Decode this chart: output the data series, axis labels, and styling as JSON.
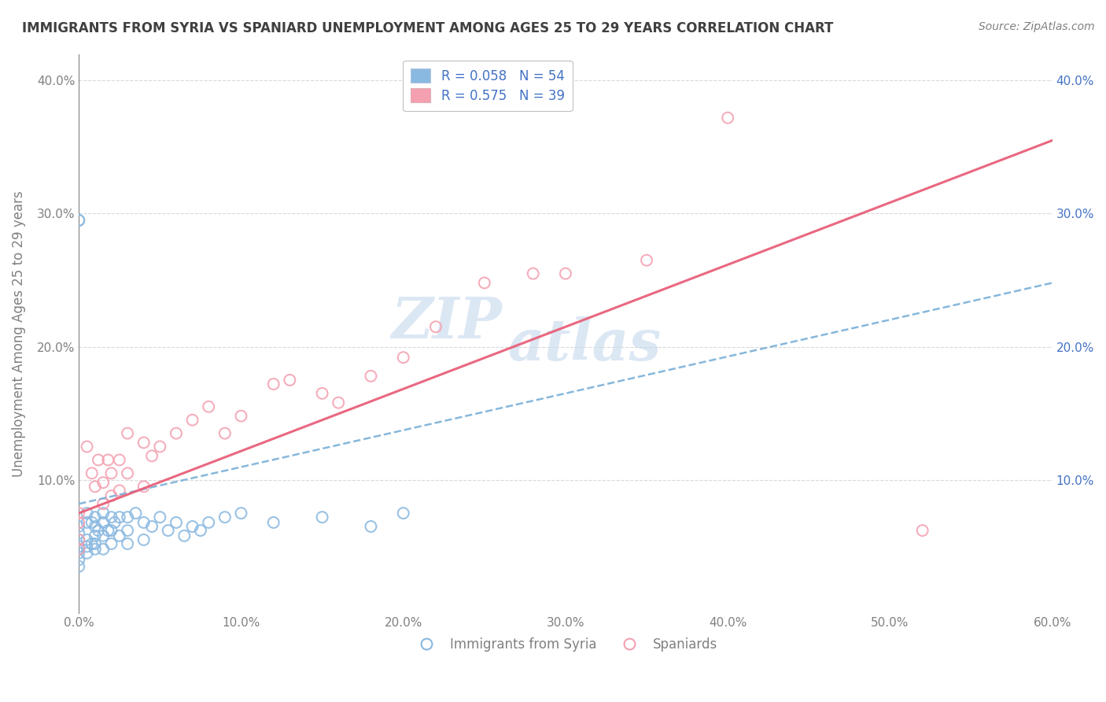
{
  "title": "IMMIGRANTS FROM SYRIA VS SPANIARD UNEMPLOYMENT AMONG AGES 25 TO 29 YEARS CORRELATION CHART",
  "source": "Source: ZipAtlas.com",
  "ylabel": "Unemployment Among Ages 25 to 29 years",
  "xlim": [
    0.0,
    0.6
  ],
  "ylim": [
    0.0,
    0.42
  ],
  "xticks": [
    0.0,
    0.1,
    0.2,
    0.3,
    0.4,
    0.5,
    0.6
  ],
  "xticklabels": [
    "0.0%",
    "10.0%",
    "20.0%",
    "30.0%",
    "40.0%",
    "50.0%",
    "60.0%"
  ],
  "yticks": [
    0.0,
    0.1,
    0.2,
    0.3,
    0.4
  ],
  "yticklabels": [
    "",
    "10.0%",
    "20.0%",
    "30.0%",
    "40.0%"
  ],
  "legend_labels_bottom": [
    "Immigrants from Syria",
    "Spaniards"
  ],
  "watermark_top": "ZIP",
  "watermark_bottom": "atlas",
  "syria_scatter_x": [
    0.0,
    0.0,
    0.0,
    0.0,
    0.0,
    0.0,
    0.0,
    0.0,
    0.0,
    0.0,
    0.005,
    0.005,
    0.005,
    0.005,
    0.005,
    0.008,
    0.008,
    0.01,
    0.01,
    0.01,
    0.01,
    0.01,
    0.012,
    0.015,
    0.015,
    0.015,
    0.015,
    0.018,
    0.02,
    0.02,
    0.02,
    0.022,
    0.025,
    0.025,
    0.03,
    0.03,
    0.03,
    0.035,
    0.04,
    0.04,
    0.045,
    0.05,
    0.055,
    0.06,
    0.065,
    0.07,
    0.075,
    0.08,
    0.09,
    0.1,
    0.12,
    0.15,
    0.18,
    0.2
  ],
  "syria_scatter_y": [
    0.295,
    0.295,
    0.065,
    0.06,
    0.055,
    0.05,
    0.048,
    0.045,
    0.04,
    0.035,
    0.075,
    0.068,
    0.055,
    0.05,
    0.045,
    0.068,
    0.052,
    0.072,
    0.065,
    0.058,
    0.052,
    0.048,
    0.062,
    0.075,
    0.068,
    0.058,
    0.048,
    0.062,
    0.072,
    0.062,
    0.052,
    0.068,
    0.072,
    0.058,
    0.072,
    0.062,
    0.052,
    0.075,
    0.068,
    0.055,
    0.065,
    0.072,
    0.062,
    0.068,
    0.058,
    0.065,
    0.062,
    0.068,
    0.072,
    0.075,
    0.068,
    0.072,
    0.065,
    0.075
  ],
  "spain_scatter_x": [
    0.0,
    0.0,
    0.0,
    0.0,
    0.005,
    0.008,
    0.01,
    0.012,
    0.015,
    0.015,
    0.018,
    0.02,
    0.02,
    0.025,
    0.025,
    0.03,
    0.03,
    0.04,
    0.04,
    0.045,
    0.05,
    0.06,
    0.07,
    0.08,
    0.09,
    0.1,
    0.12,
    0.13,
    0.15,
    0.16,
    0.18,
    0.2,
    0.22,
    0.25,
    0.28,
    0.3,
    0.35,
    0.4,
    0.52
  ],
  "spain_scatter_y": [
    0.075,
    0.068,
    0.055,
    0.048,
    0.125,
    0.105,
    0.095,
    0.115,
    0.098,
    0.082,
    0.115,
    0.105,
    0.088,
    0.115,
    0.092,
    0.135,
    0.105,
    0.128,
    0.095,
    0.118,
    0.125,
    0.135,
    0.145,
    0.155,
    0.135,
    0.148,
    0.172,
    0.175,
    0.165,
    0.158,
    0.178,
    0.192,
    0.215,
    0.248,
    0.255,
    0.255,
    0.265,
    0.372,
    0.062
  ],
  "syria_color": "#89b8e0",
  "spain_color": "#f4a0b0",
  "syria_line_color": "#7ab0d8",
  "spain_line_color": "#e8607a",
  "syria_trend_start_y": 0.082,
  "syria_trend_end_y": 0.248,
  "spain_trend_start_y": 0.075,
  "spain_trend_end_y": 0.355,
  "background_color": "#ffffff",
  "grid_color": "#d0d0d0",
  "title_color": "#404040",
  "axis_color": "#808080",
  "right_tick_color": "#4472c4",
  "r_syria": 0.058,
  "n_syria": 54,
  "r_spain": 0.575,
  "n_spain": 39
}
